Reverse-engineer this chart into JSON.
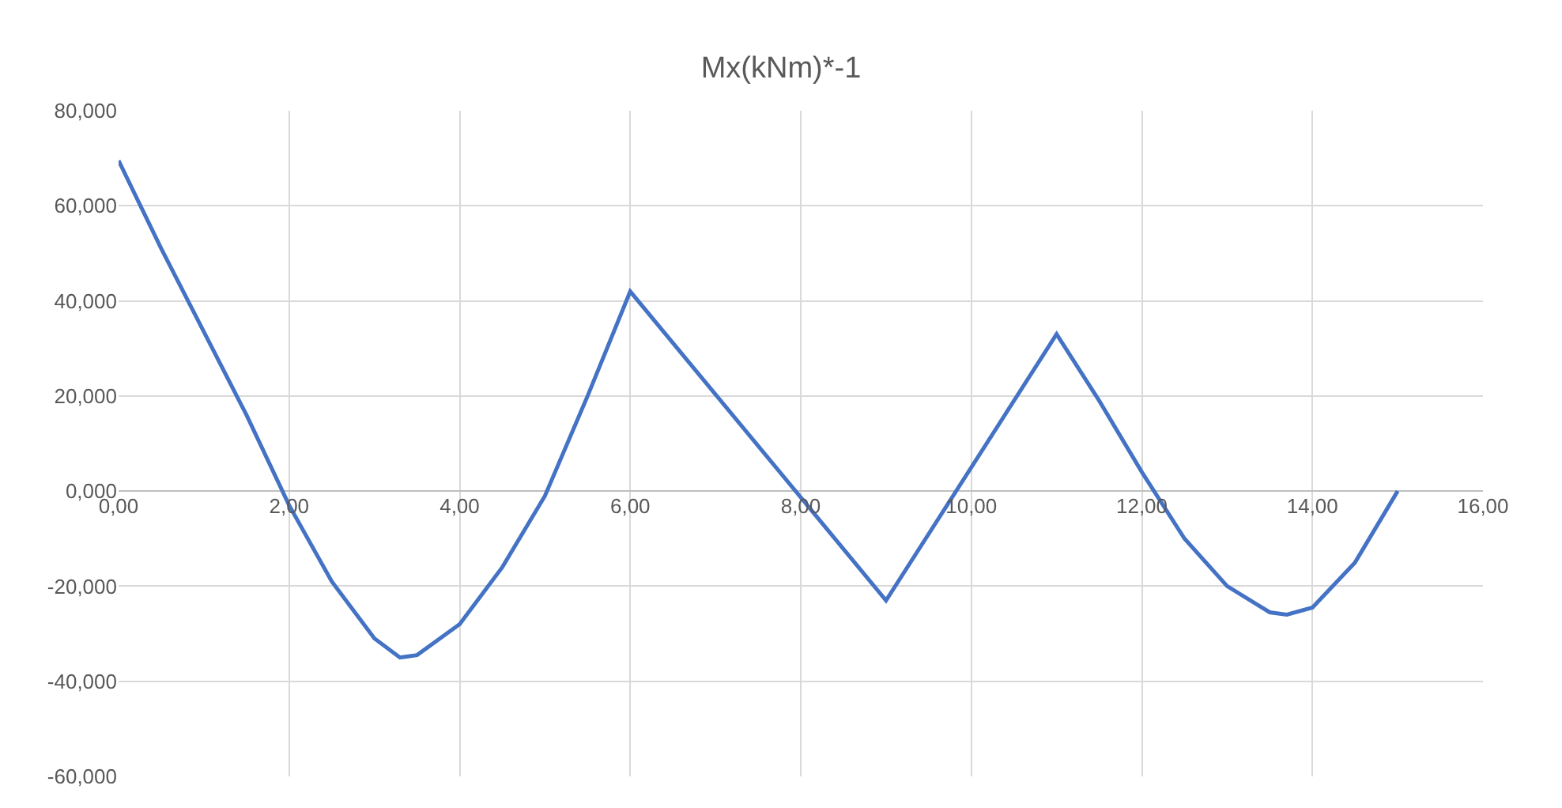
{
  "chart_data": {
    "type": "line",
    "title": "Mx(kNm)*-1",
    "x": [
      0,
      0.5,
      1,
      1.5,
      2,
      2.5,
      3,
      3.3,
      3.5,
      4,
      4.5,
      5,
      5.5,
      6,
      9,
      11,
      11.5,
      12,
      12.5,
      13,
      13.5,
      13.7,
      14,
      14.5,
      15
    ],
    "series": [
      {
        "color": "#4472c4",
        "values": [
          69.5,
          51,
          33.5,
          16,
          -3,
          -19,
          -31,
          -35,
          -34.5,
          -28,
          -16,
          -1,
          20,
          42,
          -23,
          33,
          19,
          4,
          -10,
          -20,
          -25.5,
          -26,
          -24.5,
          -15,
          0
        ]
      }
    ],
    "xlim": [
      0,
      16
    ],
    "ylim": [
      -60,
      80
    ],
    "xticks": [
      {
        "value": 0,
        "label": "0,00"
      },
      {
        "value": 2,
        "label": "2,00"
      },
      {
        "value": 4,
        "label": "4,00"
      },
      {
        "value": 6,
        "label": "6,00"
      },
      {
        "value": 8,
        "label": "8,00"
      },
      {
        "value": 10,
        "label": "10,00"
      },
      {
        "value": 12,
        "label": "12,00"
      },
      {
        "value": 14,
        "label": "14,00"
      },
      {
        "value": 16,
        "label": "16,00"
      }
    ],
    "yticks": [
      {
        "value": -60,
        "label": "-60,000"
      },
      {
        "value": -40,
        "label": "-40,000"
      },
      {
        "value": -20,
        "label": "-20,000"
      },
      {
        "value": 0,
        "label": "0,000"
      },
      {
        "value": 20,
        "label": "20,000"
      },
      {
        "value": 40,
        "label": "40,000"
      },
      {
        "value": 60,
        "label": "60,000"
      },
      {
        "value": 80,
        "label": "80,000"
      }
    ],
    "grid": true,
    "marker": "none",
    "line_style": "solid",
    "legend": false
  }
}
